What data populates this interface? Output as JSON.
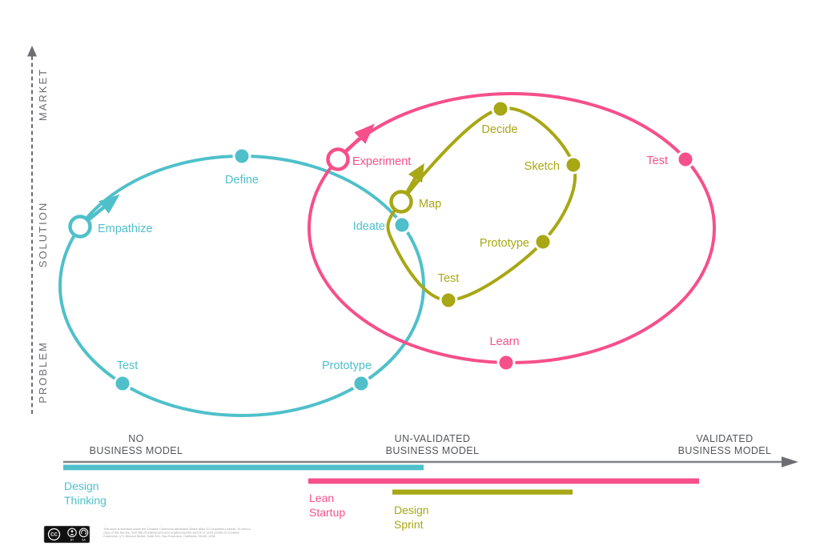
{
  "colors": {
    "teal": "#4fc0ca",
    "pink": "#f64f8b",
    "olive": "#a8a715",
    "axis_gray": "#6d6e71",
    "line_gray": "#808285",
    "white": "#ffffff"
  },
  "vertical_axis": {
    "labels": {
      "top": "MARKET",
      "middle": "SOLUTION",
      "bottom": "PROBLEM"
    }
  },
  "horizontal_axis": {
    "segments": {
      "no": {
        "line1": "NO",
        "line2": "BUSINESS MODEL"
      },
      "unvalidated": {
        "line1": "UN-VALIDATED",
        "line2": "BUSINESS MODEL"
      },
      "validated": {
        "line1": "VALIDATED",
        "line2": "BUSINESS MODEL"
      }
    }
  },
  "loops": {
    "design_thinking": {
      "name": "Design Thinking",
      "stops": {
        "empathize": "Empathize",
        "define": "Define",
        "ideate": "Ideate",
        "prototype": "Prototype",
        "test": "Test"
      }
    },
    "lean_startup": {
      "name": "Lean Startup",
      "stops": {
        "experiment": "Experiment",
        "test": "Test",
        "learn": "Learn"
      }
    },
    "design_sprint": {
      "name": "Design Sprint",
      "stops": {
        "map": "Map",
        "decide": "Decide",
        "sketch": "Sketch",
        "prototype": "Prototype",
        "test": "Test"
      }
    }
  },
  "bars": {
    "design_thinking": {
      "line1": "Design",
      "line2": "Thinking"
    },
    "lean_startup": {
      "line1": "Lean",
      "line2": "Startup"
    },
    "design_sprint": {
      "line1": "Design",
      "line2": "Sprint"
    }
  },
  "license": {
    "badge_cc": "CC",
    "badge_by": "BY",
    "badge_sa": "SA",
    "line1": "This work is licensed under the Creative Commons Attribution-Share Alike 3.0 Unported License. To view a",
    "line2": "copy of this license, visit http://creativecommons.org/licenses/by-sa/3.0/ or send a letter to Creative",
    "line3": "Commons, 171 Second Street, Suite 300, San Francisco, California, 94105, USA."
  }
}
